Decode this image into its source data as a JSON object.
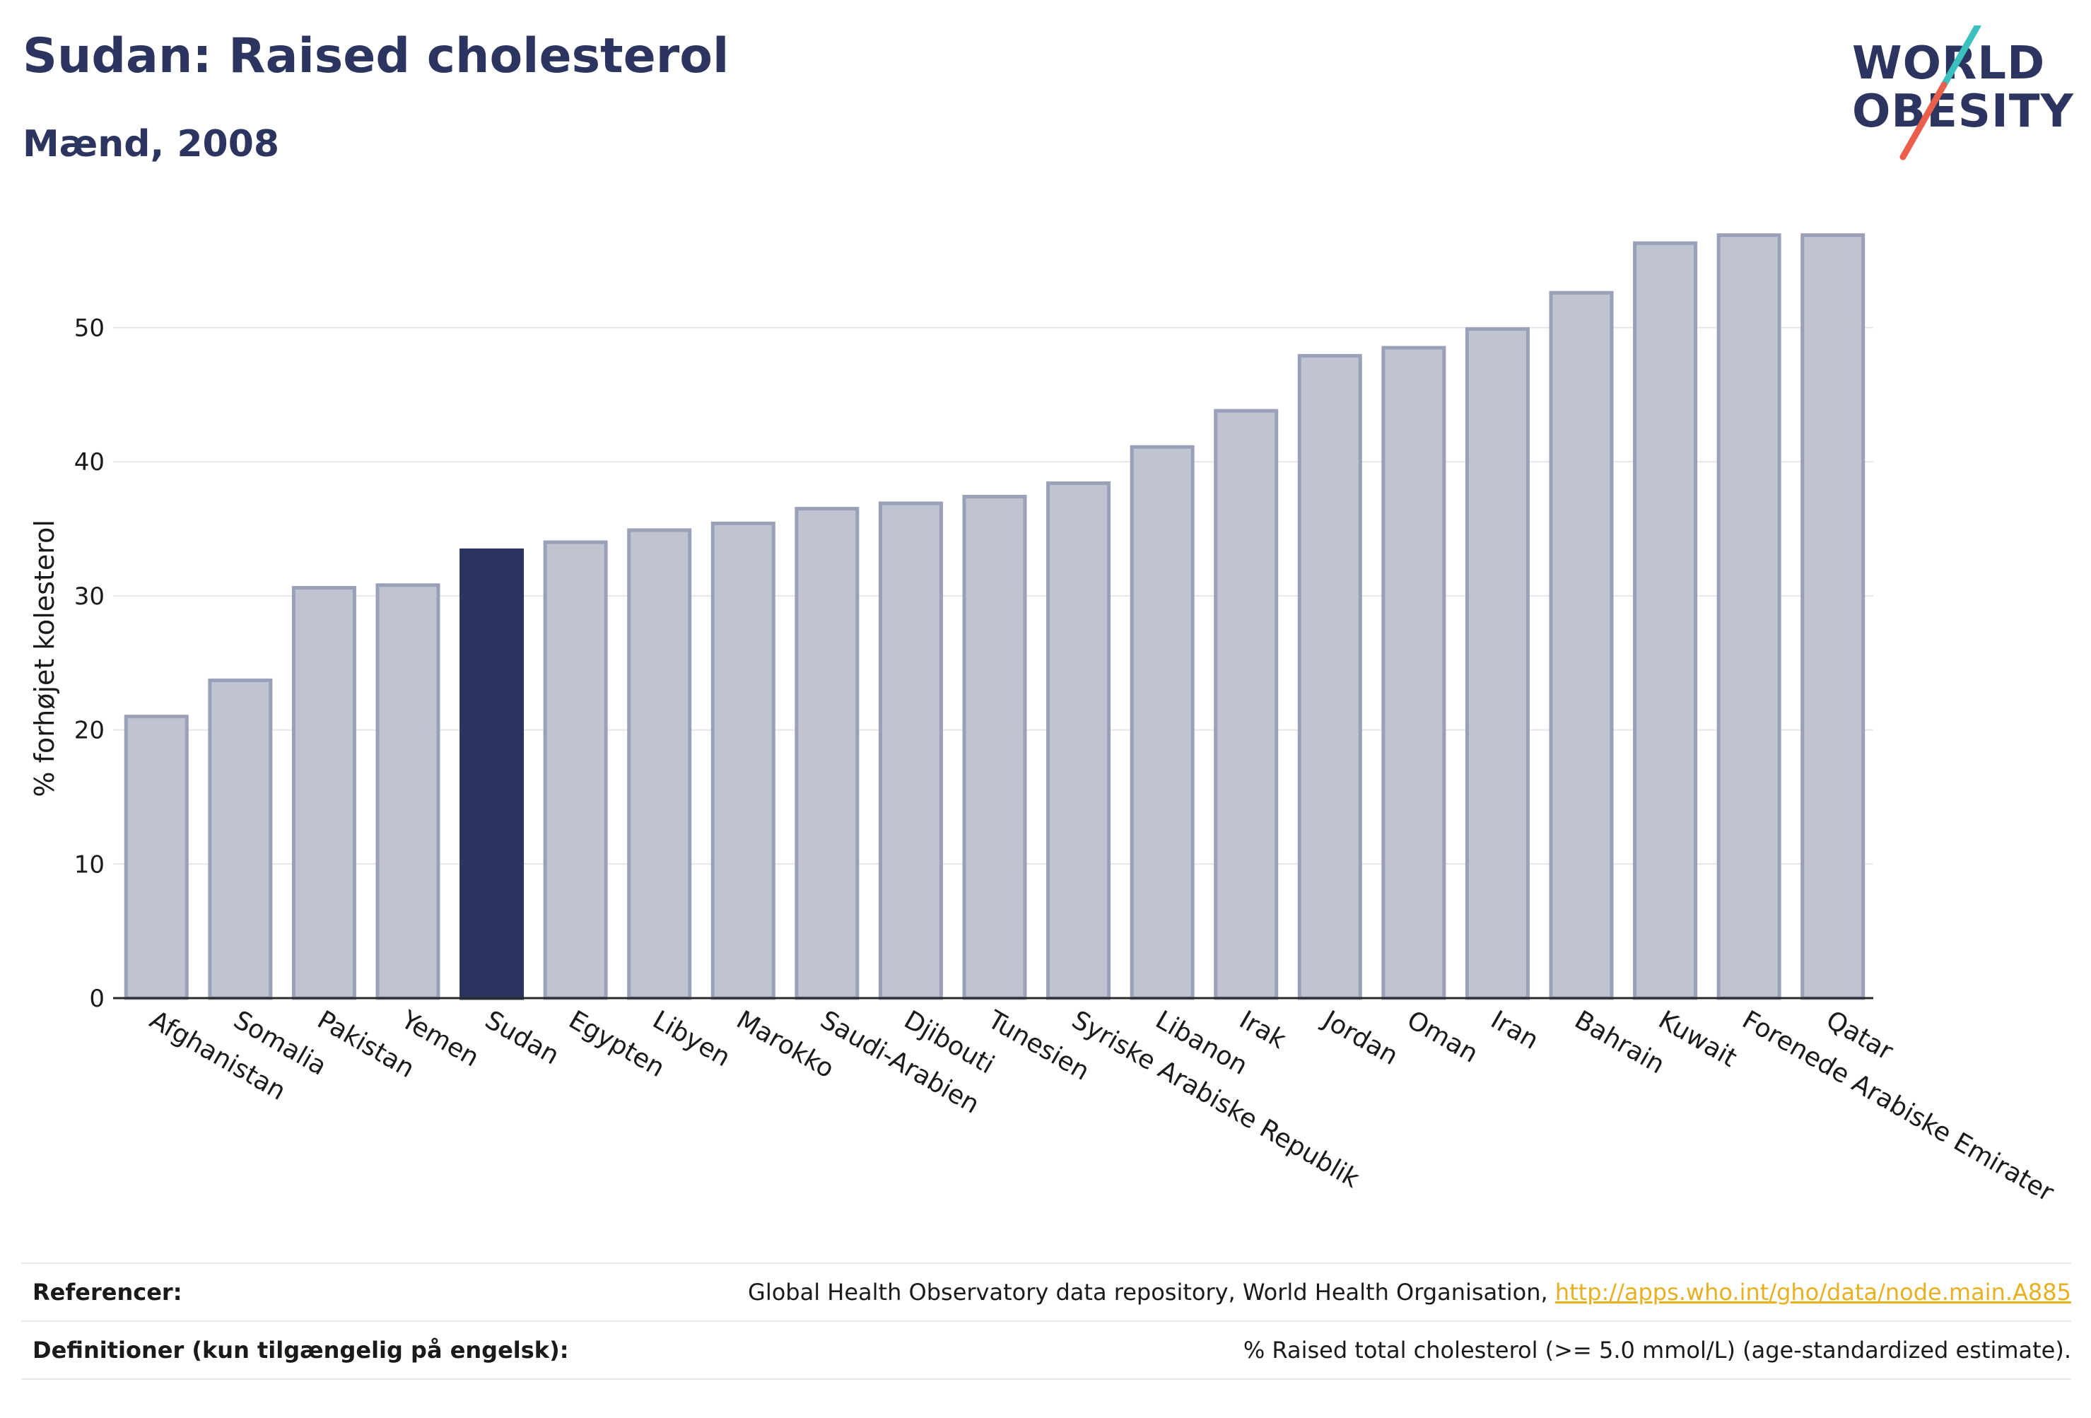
{
  "header": {
    "title": "Sudan: Raised cholesterol",
    "subtitle": "Mænd, 2008"
  },
  "logo": {
    "line1": "WORLD",
    "line2": "OBESITY",
    "colors": {
      "text": "#2b3560",
      "slash_top": "#3bbfbf",
      "slash_bottom": "#e8604c"
    }
  },
  "chart_data": {
    "type": "bar",
    "ylabel": "% forhøjet kolesterol",
    "ylim": [
      0,
      57
    ],
    "yticks": [
      0,
      10,
      20,
      30,
      40,
      50
    ],
    "grid": true,
    "highlight": "Sudan",
    "colors": {
      "bar": "#c0c3d0",
      "bar_border": "#9aa0b8",
      "highlight": "#2b3560",
      "grid": "#e4e6ec",
      "axis": "#2a2a2a"
    },
    "categories": [
      "Afghanistan",
      "Somalia",
      "Pakistan",
      "Yemen",
      "Sudan",
      "Egypten",
      "Libyen",
      "Marokko",
      "Saudi-Arabien",
      "Djibouti",
      "Tunesien",
      "Syriske Arabiske Republik",
      "Libanon",
      "Irak",
      "Jordan",
      "Oman",
      "Iran",
      "Bahrain",
      "Kuwait",
      "Forenede Arabiske Emirater",
      "Qatar"
    ],
    "values": [
      21.0,
      23.7,
      30.6,
      30.8,
      33.4,
      34.0,
      34.9,
      35.4,
      36.5,
      36.9,
      37.4,
      38.4,
      41.1,
      43.8,
      47.9,
      48.5,
      49.9,
      52.6,
      56.3,
      56.9,
      56.9
    ]
  },
  "footer": {
    "references_label": "Referencer:",
    "references_text": "Global Health Observatory data repository, World Health Organisation, ",
    "references_link": "http://apps.who.int/gho/data/node.main.A885",
    "definitions_label": "Definitioner (kun tilgængelig på engelsk):",
    "definitions_text": "% Raised total cholesterol (>= 5.0 mmol/L) (age-standardized estimate)."
  }
}
